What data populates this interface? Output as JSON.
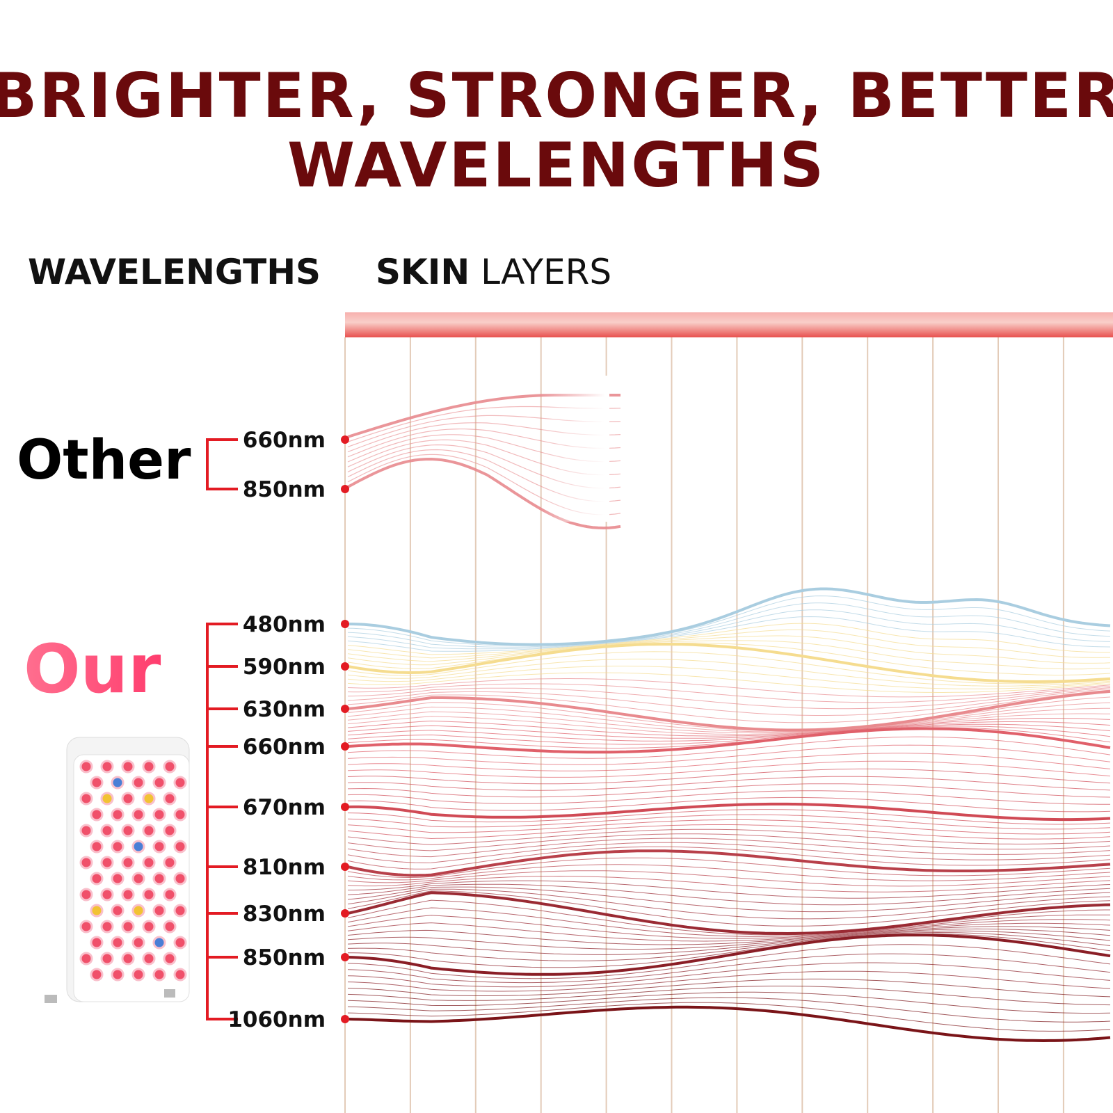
{
  "header": {
    "title_line1": "BRIGHTER, STRONGER, BETTER",
    "title_line2": "WAVELENGTHS"
  },
  "columns": {
    "wavelengths": "WAVELENGTHS",
    "skin": "SKIN",
    "layers": "LAYERS"
  },
  "other": {
    "label": "Other",
    "wavelengths": [
      "660nm",
      "850nm"
    ]
  },
  "our": {
    "label": "Our",
    "wavelengths": [
      "480nm",
      "590nm",
      "630nm",
      "660nm",
      "670nm",
      "810nm",
      "830nm",
      "850nm",
      "1060nm"
    ]
  }
}
